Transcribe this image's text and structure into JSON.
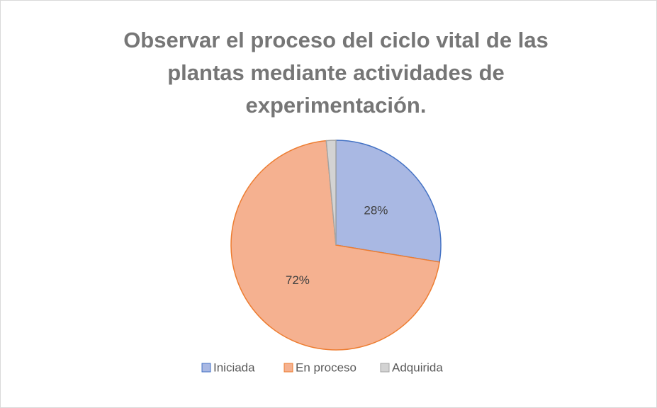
{
  "chart_data": {
    "type": "pie",
    "title": "Observar el proceso del ciclo vital de las plantas mediante actividades de experimentación.",
    "categories": [
      "Iniciada",
      "En proceso",
      "Adquirida"
    ],
    "values": [
      28,
      72,
      1.5
    ],
    "value_labels": [
      "28%",
      "72%",
      null
    ],
    "colors": [
      "#a9b8e3",
      "#f5b190",
      "#d3d3d3"
    ],
    "edge_colors": [
      "#4472c4",
      "#ed7d31",
      "#a5a5a5"
    ],
    "legend": "bottom"
  }
}
